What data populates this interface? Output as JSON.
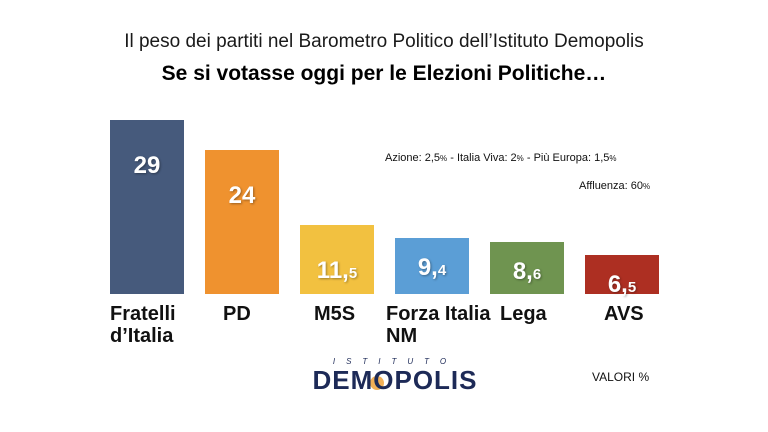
{
  "subtitle": "Il peso dei partiti nel Barometro Politico dell’Istituto Demopolis",
  "title": "Se si votasse oggi per le Elezioni Politiche…",
  "notes": {
    "line1": "Azione: 2,5% - Italia Viva: 2% - Più Europa: 1,5%",
    "line2": "Affluenza: 60%"
  },
  "logo": {
    "top": "ISTITUTO",
    "main": "DEMOPOLIS"
  },
  "units": "VALORI %",
  "chart_data": {
    "type": "bar",
    "categories": [
      "Fratelli\nd’Italia",
      "PD",
      "M5S",
      "Forza Italia\nNM",
      "Lega",
      "AVS"
    ],
    "values": [
      29,
      24,
      11.5,
      9.4,
      8.6,
      6.5
    ],
    "value_labels": [
      "29",
      "24",
      "11,5",
      "9,4",
      "8,6",
      "6,5"
    ],
    "colors": [
      "#465a7c",
      "#ef922f",
      "#f2c140",
      "#5b9ed6",
      "#6f9450",
      "#ad2f22"
    ],
    "title": "Se si votasse oggi per le Elezioni Politiche…",
    "xlabel": "",
    "ylabel": "",
    "grid": false
  }
}
